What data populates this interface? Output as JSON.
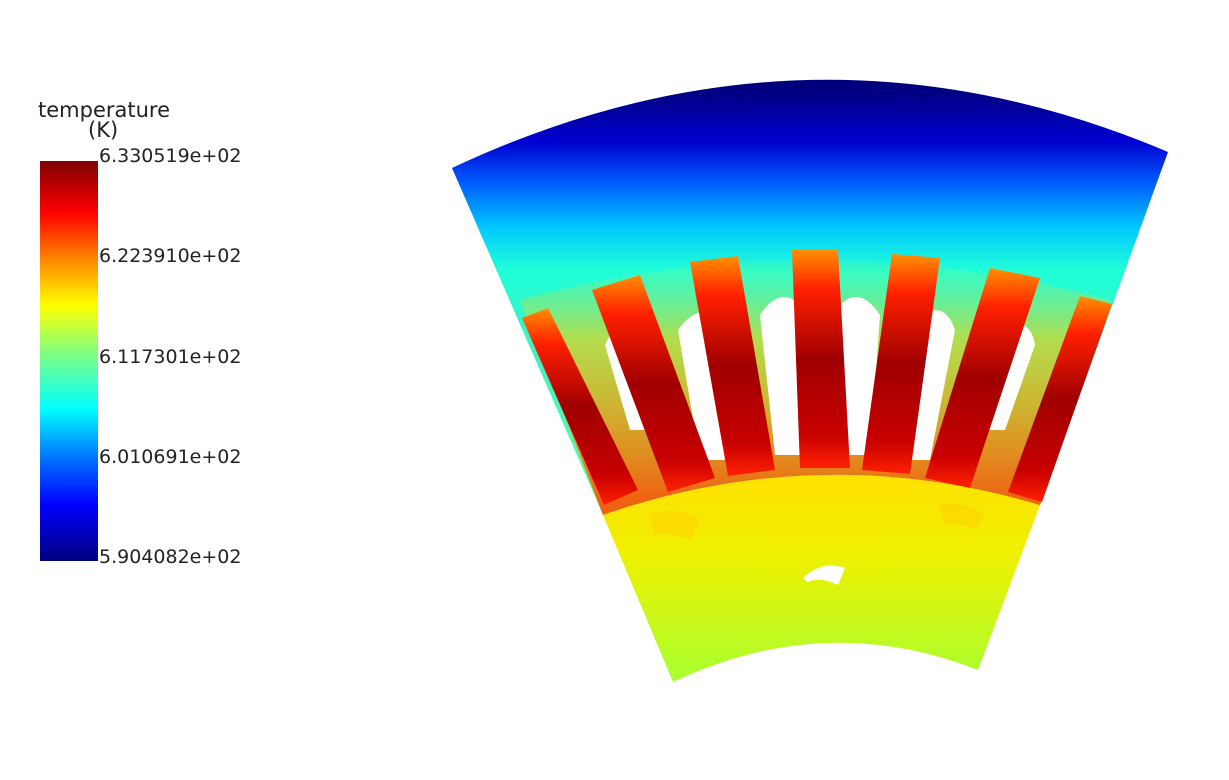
{
  "legend": {
    "title_line1": "temperature",
    "title_line2": "(K)",
    "ticks": [
      "6.330519e+02",
      "6.223910e+02",
      "6.117301e+02",
      "6.010691e+02",
      "5.904082e+02"
    ],
    "colormap": "jet",
    "max": 633.0519,
    "min": 590.4082
  },
  "colors": {
    "cold": "#00007f",
    "cool": "#00c8ff",
    "mid": "#ffee00",
    "hot": "#ff2000",
    "hottest": "#8b0000"
  },
  "scene": {
    "type": "temperature-contour",
    "stator_slots": 7,
    "rotor_fill": "yellow-green"
  }
}
